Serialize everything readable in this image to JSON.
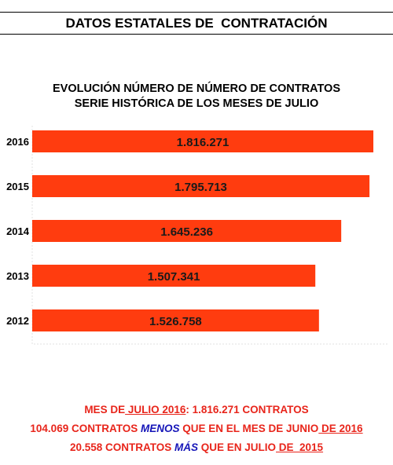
{
  "header": {
    "title": "DATOS ESTATALES DE  CONTRATACIÓN"
  },
  "chart_data": {
    "type": "bar",
    "orientation": "horizontal",
    "title_lines": [
      "EVOLUCIÓN NÚMERO DE NÚMERO DE CONTRATOS",
      "SERIE HISTÓRICA DE LOS MESES DE JULIO"
    ],
    "categories": [
      "2016",
      "2015",
      "2014",
      "2013",
      "2012"
    ],
    "values": [
      1816271,
      1795713,
      1645236,
      1507341,
      1526758
    ],
    "value_labels": [
      "1.816.271",
      "1.795.713",
      "1.645.236",
      "1.507.341",
      "1.526.758"
    ],
    "bar_color": "#ff3c0f",
    "xlim": [
      0,
      1816271
    ],
    "grid": false,
    "legend": "none"
  },
  "footer": {
    "line1": {
      "a": "MES DE",
      "b": " JULIO 2016",
      "c": ": 1.816.271 CONTRATOS"
    },
    "line2": {
      "a": "104.069 CONTRATOS ",
      "b": "MENOS",
      "c": " QUE EN EL MES DE JUNIO",
      "d": " DE 2016"
    },
    "line3": {
      "a": "20.558 CONTRATOS ",
      "b": "MÁS",
      "c": " QUE EN JULIO",
      "d": " DE  2015"
    }
  },
  "colors": {
    "accent_text": "#e8251b",
    "emphasis_text": "#1515b8"
  }
}
